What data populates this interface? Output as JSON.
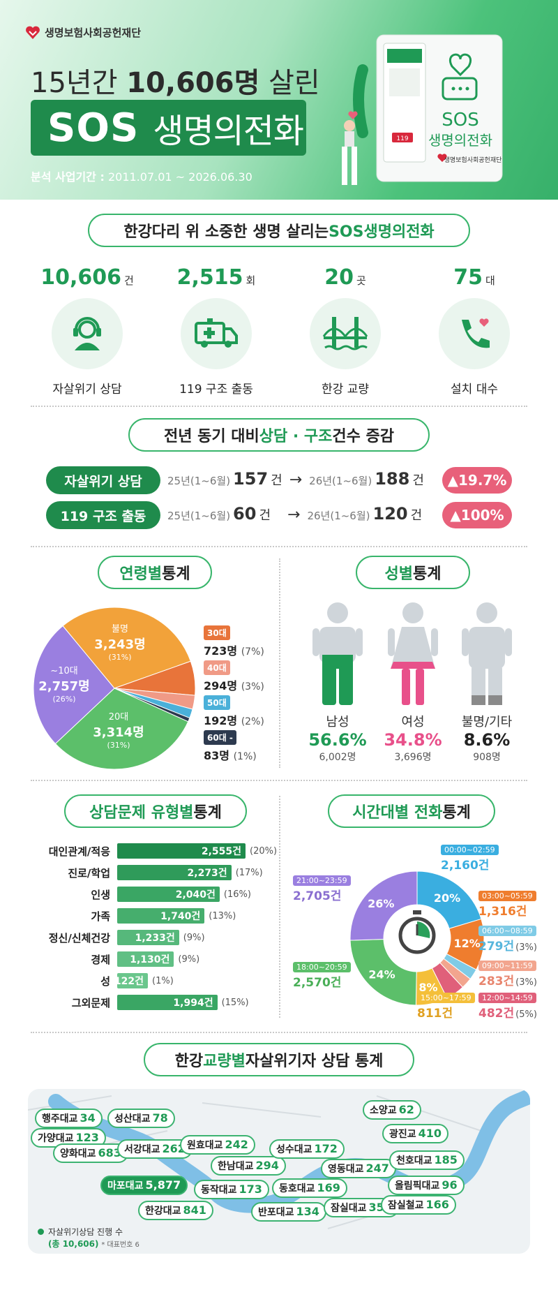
{
  "header": {
    "org": "생명보험사회공헌재단",
    "line1_prefix": "15년간 ",
    "line1_bold": "10,606명",
    "line1_suffix": " 살린",
    "title_main": "SOS",
    "title_sub": "생명의전화",
    "period_label": "분석 사업기간 :",
    "period_value": "2011.07.01 ~ 2026.06.30",
    "device_text_1": "SOS",
    "device_text_2": "생명의전화",
    "device_org": "생명보험사회공헌재단",
    "device_badge": "119"
  },
  "summary": {
    "title_plain": "한강다리 위 소중한 생명 살리는 ",
    "title_green": "SOS생명의전화",
    "stats": [
      {
        "value": "10,606",
        "unit": "건",
        "label": "자살위기 상담",
        "icon": "headset-icon"
      },
      {
        "value": "2,515",
        "unit": "회",
        "label": "119 구조 출동",
        "icon": "ambulance-icon"
      },
      {
        "value": "20",
        "unit": "곳",
        "label": "한강 교량",
        "icon": "bridge-icon"
      },
      {
        "value": "75",
        "unit": "대",
        "label": "설치 대수",
        "icon": "phone-heart-icon"
      }
    ]
  },
  "comparison": {
    "title_plain1": "전년 동기 대비 ",
    "title_green": "상담 · 구조",
    "title_plain2": " 건수 증감",
    "rows": [
      {
        "tag": "자살위기 상담",
        "prev_period": "25년(1~6월)",
        "prev_value": "157",
        "prev_unit": "건",
        "cur_period": "26년(1~6월)",
        "cur_value": "188",
        "cur_unit": "건",
        "change": "▲19.7%"
      },
      {
        "tag": "119 구조 출동",
        "prev_period": "25년(1~6월)",
        "prev_value": "60",
        "prev_unit": "건",
        "cur_period": "26년(1~6월)",
        "cur_value": "120",
        "cur_unit": "건",
        "change": "▲100%"
      }
    ]
  },
  "age": {
    "title_green": "연령별",
    "title_plain": " 통계",
    "pie_labels": [
      {
        "name": "불명",
        "value": "3,243명",
        "pct": "(31%)"
      },
      {
        "name": "~10대",
        "value": "2,757명",
        "pct": "(26%)"
      },
      {
        "name": "20대",
        "value": "3,314명",
        "pct": "(31%)"
      }
    ],
    "legend": [
      {
        "tag": "30대",
        "value": "723명",
        "pct": "(7%)",
        "color": "#e8743a"
      },
      {
        "tag": "40대",
        "value": "294명",
        "pct": "(3%)",
        "color": "#f09a86"
      },
      {
        "tag": "50대",
        "value": "192명",
        "pct": "(2%)",
        "color": "#4ab0d9"
      },
      {
        "tag": "60대 -",
        "value": "83명",
        "pct": "(1%)",
        "color": "#2d3a4f"
      }
    ]
  },
  "gender": {
    "title_green": "성별",
    "title_plain": " 통계",
    "items": [
      {
        "label": "남성",
        "pct": "56.6%",
        "count": "6,002명",
        "color": "#1f9a55"
      },
      {
        "label": "여성",
        "pct": "34.8%",
        "count": "3,696명",
        "color": "#e8508a"
      },
      {
        "label": "불명/기타",
        "pct": "8.6%",
        "count": "908명",
        "color": "#222222"
      }
    ]
  },
  "issues": {
    "title_green": "상담문제 유형별",
    "title_plain": " 통계"
  },
  "timeslots": {
    "title_green": "시간대별 전화",
    "title_plain": " 통계",
    "ring_labels": [
      "20%",
      "12%",
      "8%",
      "24%",
      "26%"
    ],
    "slots": [
      {
        "time": "00:00~02:59",
        "value": "2,160건",
        "pct": "",
        "color": "#3aaee0"
      },
      {
        "time": "03:00~05:59",
        "value": "1,316건",
        "pct": "",
        "color": "#ef7d2e"
      },
      {
        "time": "06:00~08:59",
        "value": "279건",
        "pct": "(3%)",
        "color": "#7fcbe6"
      },
      {
        "time": "09:00~11:59",
        "value": "283건",
        "pct": "(3%)",
        "color": "#f2a58e"
      },
      {
        "time": "12:00~14:59",
        "value": "482건",
        "pct": "(5%)",
        "color": "#e0607a"
      },
      {
        "time": "15:00~17:59",
        "value": "811건",
        "pct": "",
        "color": "#f4bf3a"
      },
      {
        "time": "18:00~20:59",
        "value": "2,570건",
        "pct": "",
        "color": "#5cbf6a"
      },
      {
        "time": "21:00~23:59",
        "value": "2,705건",
        "pct": "",
        "color": "#9a7fe0"
      }
    ]
  },
  "bridges": {
    "title_plain1": "한강 ",
    "title_green": "교량별",
    "title_plain2": " 자살위기자 상담 통계",
    "legend_main": "자살위기상담 진행 수",
    "legend_total": "(총 10,606)",
    "legend_note": "* 대표번호 6",
    "items": [
      {
        "name": "행주대교",
        "value": "34"
      },
      {
        "name": "가양대교",
        "value": "123"
      },
      {
        "name": "성산대교",
        "value": "78"
      },
      {
        "name": "양화대교",
        "value": "683"
      },
      {
        "name": "서강대교",
        "value": "262"
      },
      {
        "name": "원효대교",
        "value": "242"
      },
      {
        "name": "마포대교",
        "value": "5,877"
      },
      {
        "name": "한남대교",
        "value": "294"
      },
      {
        "name": "동작대교",
        "value": "173"
      },
      {
        "name": "한강대교",
        "value": "841"
      },
      {
        "name": "성수대교",
        "value": "172"
      },
      {
        "name": "동호대교",
        "value": "169"
      },
      {
        "name": "반포대교",
        "value": "134"
      },
      {
        "name": "영동대교",
        "value": "247"
      },
      {
        "name": "잠실대교",
        "value": "352"
      },
      {
        "name": "소양교",
        "value": "62"
      },
      {
        "name": "광진교",
        "value": "410"
      },
      {
        "name": "천호대교",
        "value": "185"
      },
      {
        "name": "올림픽대교",
        "value": "96"
      },
      {
        "name": "잠실철교",
        "value": "166"
      }
    ]
  },
  "chart_data": [
    {
      "type": "pie",
      "title": "연령별 통계",
      "categories": [
        "불명",
        "~10대",
        "20대",
        "30대",
        "40대",
        "50대",
        "60대 -"
      ],
      "values": [
        3243,
        2757,
        3314,
        723,
        294,
        192,
        83
      ],
      "percents": [
        31,
        26,
        31,
        7,
        3,
        2,
        1
      ],
      "colors": [
        "#f2a23a",
        "#9a7fe0",
        "#5cbf6a",
        "#e8743a",
        "#f09a86",
        "#4ab0d9",
        "#2d3a4f"
      ]
    },
    {
      "type": "bar",
      "title": "상담문제 유형별 통계",
      "categories": [
        "대인관계/적응",
        "진로/학업",
        "인생",
        "가족",
        "정신/신체건강",
        "경제",
        "성",
        "그외문제"
      ],
      "values": [
        2555,
        2273,
        2040,
        1740,
        1233,
        1130,
        122,
        1994
      ],
      "value_labels": [
        "2,555건",
        "2,273건",
        "2,040건",
        "1,740건",
        "1,233건",
        "1,130건",
        "122건",
        "1,994건"
      ],
      "percents": [
        "(20%)",
        "(17%)",
        "(16%)",
        "(13%)",
        "(9%)",
        "(9%)",
        "(1%)",
        "(15%)"
      ],
      "shades": [
        "#1f8b4c",
        "#2f9b5a",
        "#3aa664",
        "#46ae6d",
        "#56b87b",
        "#60bf84",
        "#6ac68c",
        "#3aa664"
      ]
    },
    {
      "type": "pie",
      "title": "시간대별 전화 통계",
      "categories": [
        "00:00~02:59",
        "03:00~05:59",
        "06:00~08:59",
        "09:00~11:59",
        "12:00~14:59",
        "15:00~17:59",
        "18:00~20:59",
        "21:00~23:59"
      ],
      "values": [
        2160,
        1316,
        279,
        283,
        482,
        811,
        2570,
        2705
      ]
    }
  ]
}
